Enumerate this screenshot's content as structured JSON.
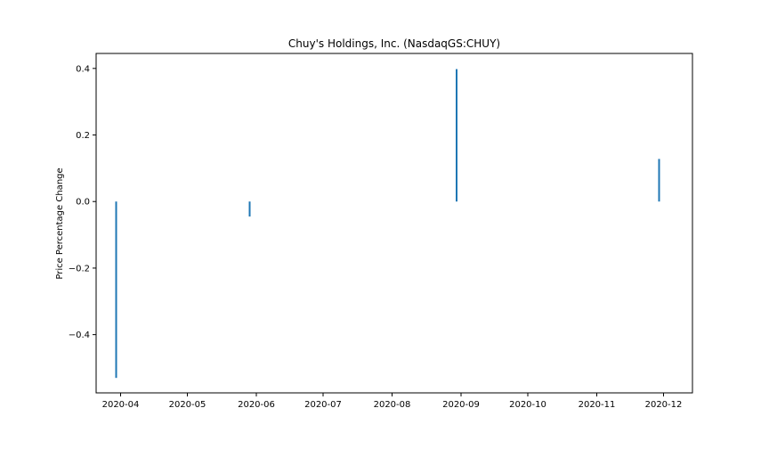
{
  "chart_data": {
    "type": "bar",
    "title": "Chuy's Holdings, Inc. (NasdaqGS:CHUY)",
    "xlabel": "",
    "ylabel": "Price Percentage Change",
    "x_tick_labels": [
      "2020-04",
      "2020-05",
      "2020-06",
      "2020-07",
      "2020-08",
      "2020-09",
      "2020-10",
      "2020-11",
      "2020-12"
    ],
    "x_tick_dates": [
      "2020-04-01",
      "2020-05-01",
      "2020-06-01",
      "2020-07-01",
      "2020-08-01",
      "2020-09-01",
      "2020-10-01",
      "2020-11-01",
      "2020-12-01"
    ],
    "xlim": [
      "2020-03-21",
      "2020-12-14"
    ],
    "ylim": [
      -0.575,
      0.445
    ],
    "y_ticks": [
      -0.4,
      -0.2,
      0.0,
      0.2,
      0.4
    ],
    "y_tick_labels": [
      "−0.4",
      "−0.2",
      "0.0",
      "0.2",
      "0.4"
    ],
    "grid": false,
    "color": "#1f77b4",
    "points": [
      {
        "date": "2020-03-30",
        "value": -0.53
      },
      {
        "date": "2020-05-29",
        "value": -0.045
      },
      {
        "date": "2020-08-30",
        "value": 0.398
      },
      {
        "date": "2020-11-29",
        "value": 0.128
      }
    ]
  }
}
